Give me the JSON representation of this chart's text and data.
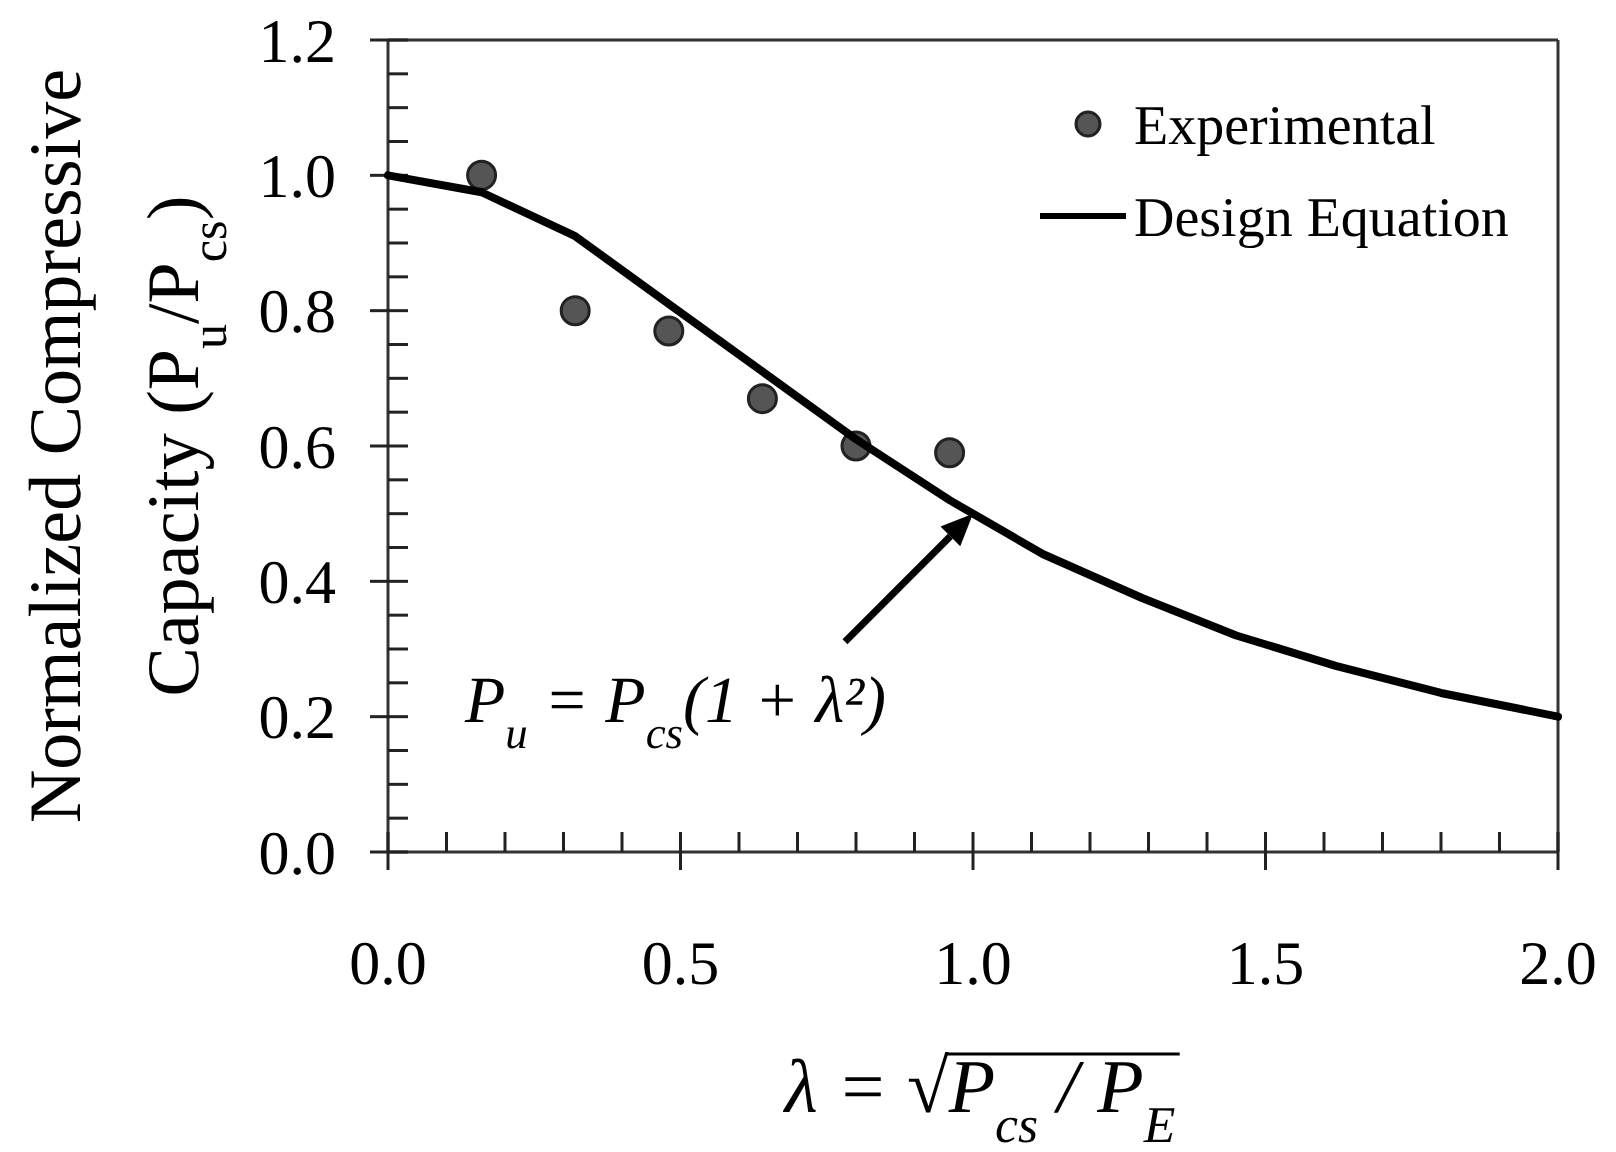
{
  "chart_data": {
    "type": "scatter",
    "xlabel": "λ = √P$_{cs}$ / P$_{E}$",
    "ylabel": "Normalized Compressive\nCapacity (P$_{u}$/P$_{cs}$)",
    "xlim": [
      0,
      2
    ],
    "ylim": [
      0,
      1.2
    ],
    "xticks": [
      {
        "value": 0,
        "label": "0.0"
      },
      {
        "value": 0.1,
        "label": null
      },
      {
        "value": 0.2,
        "label": null
      },
      {
        "value": 0.3,
        "label": null
      },
      {
        "value": 0.4,
        "label": null
      },
      {
        "value": 0.5,
        "label": "0.5"
      },
      {
        "value": 0.6,
        "label": null
      },
      {
        "value": 0.7,
        "label": null
      },
      {
        "value": 0.8,
        "label": null
      },
      {
        "value": 0.9,
        "label": null
      },
      {
        "value": 1,
        "label": "1.0"
      },
      {
        "value": 1.1,
        "label": null
      },
      {
        "value": 1.2,
        "label": null
      },
      {
        "value": 1.3,
        "label": null
      },
      {
        "value": 1.4,
        "label": null
      },
      {
        "value": 1.5,
        "label": "1.5"
      },
      {
        "value": 1.6,
        "label": null
      },
      {
        "value": 1.7,
        "label": null
      },
      {
        "value": 1.8,
        "label": null
      },
      {
        "value": 1.9,
        "label": null
      },
      {
        "value": 2,
        "label": "2.0"
      }
    ],
    "yticks": [
      {
        "value": 0,
        "label": "0.0"
      },
      {
        "value": 0.05,
        "label": null
      },
      {
        "value": 0.1,
        "label": null
      },
      {
        "value": 0.15,
        "label": null
      },
      {
        "value": 0.2,
        "label": "0.2"
      },
      {
        "value": 0.25,
        "label": null
      },
      {
        "value": 0.3,
        "label": null
      },
      {
        "value": 0.35,
        "label": null
      },
      {
        "value": 0.4,
        "label": "0.4"
      },
      {
        "value": 0.45,
        "label": null
      },
      {
        "value": 0.5,
        "label": null
      },
      {
        "value": 0.55,
        "label": null
      },
      {
        "value": 0.6,
        "label": "0.6"
      },
      {
        "value": 0.65,
        "label": null
      },
      {
        "value": 0.7,
        "label": null
      },
      {
        "value": 0.75,
        "label": null
      },
      {
        "value": 0.8,
        "label": "0.8"
      },
      {
        "value": 0.85,
        "label": null
      },
      {
        "value": 0.9,
        "label": null
      },
      {
        "value": 0.95,
        "label": null
      },
      {
        "value": 1,
        "label": "1.0"
      },
      {
        "value": 1.05,
        "label": null
      },
      {
        "value": 1.1,
        "label": null
      },
      {
        "value": 1.15,
        "label": null
      },
      {
        "value": 1.2,
        "label": "1.2"
      }
    ],
    "legend": "top right",
    "series": [
      {
        "name": "Experimental",
        "type": "scatter",
        "color": "#555555",
        "marker": "circle",
        "x": [
          0.16,
          0.32,
          0.48,
          0.64,
          0.8,
          0.96
        ],
        "values": [
          1.0,
          0.8,
          0.77,
          0.67,
          0.6,
          0.59
        ]
      },
      {
        "name": "Design Equation",
        "type": "line",
        "color": "#000000",
        "line_style": "solid",
        "x": [
          0,
          0.16,
          0.32,
          0.48,
          0.64,
          0.8,
          0.96,
          1.12,
          1.29,
          1.45,
          1.62,
          1.8,
          2.0
        ],
        "values": [
          1.0,
          0.975,
          0.91,
          0.81,
          0.71,
          0.61,
          0.52,
          0.44,
          0.375,
          0.32,
          0.275,
          0.235,
          0.2
        ]
      }
    ],
    "annotations": [
      {
        "text": "P$_{u}$ = P$_{cs}$(1 + λ²)",
        "x": 1.0,
        "y": 0.5
      }
    ]
  }
}
